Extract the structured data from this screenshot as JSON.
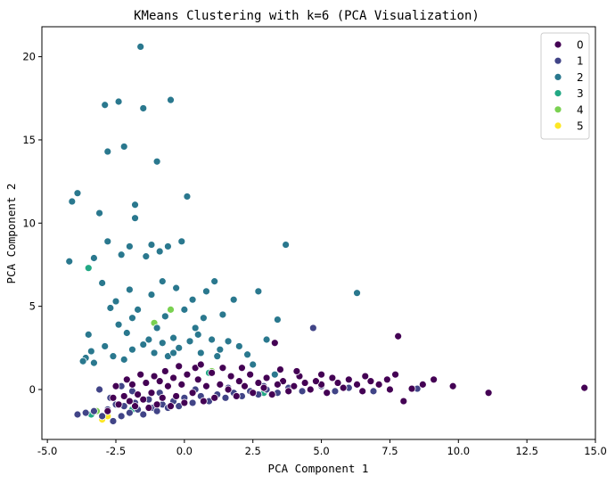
{
  "chart_data": {
    "type": "scatter",
    "title": "KMeans Clustering with k=6 (PCA Visualization)",
    "xlabel": "PCA Component 1",
    "ylabel": "PCA Component 2",
    "xlim": [
      -5.2,
      15.0
    ],
    "ylim": [
      -3.0,
      21.8
    ],
    "x_ticks": [
      "-5.0",
      "-2.5",
      "0.0",
      "2.5",
      "5.0",
      "7.5",
      "10.0",
      "12.5",
      "15.0"
    ],
    "x_tick_values": [
      -5.0,
      -2.5,
      0.0,
      2.5,
      5.0,
      7.5,
      10.0,
      12.5,
      15.0
    ],
    "y_ticks": [
      "0",
      "5",
      "10",
      "15",
      "20"
    ],
    "y_tick_values": [
      0,
      5,
      10,
      15,
      20
    ],
    "grid": false,
    "legend_position": "top-right",
    "series": [
      {
        "name": "0",
        "color": "#440154",
        "points": [
          [
            14.6,
            0.1
          ],
          [
            11.1,
            -0.2
          ],
          [
            9.8,
            0.2
          ],
          [
            9.1,
            0.6
          ],
          [
            8.7,
            0.3
          ],
          [
            8.3,
            0.05
          ],
          [
            8.0,
            -0.7
          ],
          [
            7.8,
            3.2
          ],
          [
            7.7,
            0.9
          ],
          [
            7.4,
            0.6
          ],
          [
            7.1,
            0.3
          ],
          [
            6.8,
            0.5
          ],
          [
            6.5,
            -0.1
          ],
          [
            6.3,
            0.3
          ],
          [
            6.0,
            0.6
          ],
          [
            5.8,
            0.1
          ],
          [
            5.6,
            0.4
          ],
          [
            5.4,
            0.7
          ],
          [
            5.2,
            -0.2
          ],
          [
            5.0,
            0.3
          ],
          [
            4.8,
            0.5
          ],
          [
            4.6,
            0.0
          ],
          [
            4.4,
            0.4
          ],
          [
            4.2,
            0.8
          ],
          [
            4.0,
            0.2
          ],
          [
            3.8,
            -0.1
          ],
          [
            3.6,
            0.5
          ],
          [
            3.4,
            0.3
          ],
          [
            3.3,
            2.8
          ],
          [
            3.2,
            -0.3
          ],
          [
            3.0,
            0.7
          ],
          [
            2.9,
            0.1
          ],
          [
            2.7,
            0.4
          ],
          [
            2.5,
            -0.2
          ],
          [
            2.4,
            0.9
          ],
          [
            2.2,
            0.2
          ],
          [
            2.0,
            0.5
          ],
          [
            1.9,
            -0.4
          ],
          [
            1.7,
            0.8
          ],
          [
            1.6,
            0.0
          ],
          [
            1.4,
            1.3
          ],
          [
            1.3,
            0.3
          ],
          [
            1.1,
            -0.5
          ],
          [
            1.0,
            1.0
          ],
          [
            0.8,
            0.2
          ],
          [
            0.7,
            -0.7
          ],
          [
            0.5,
            0.6
          ],
          [
            0.4,
            1.3
          ],
          [
            0.3,
            -0.2
          ],
          [
            0.1,
            0.9
          ],
          [
            0.0,
            -0.8
          ],
          [
            -0.1,
            0.3
          ],
          [
            -0.2,
            1.4
          ],
          [
            -0.3,
            -0.4
          ],
          [
            -0.4,
            0.7
          ],
          [
            -0.5,
            -1.0
          ],
          [
            -0.6,
            0.2
          ],
          [
            -0.7,
            1.1
          ],
          [
            -0.8,
            -0.5
          ],
          [
            -0.9,
            0.5
          ],
          [
            -1.0,
            -0.9
          ],
          [
            -1.1,
            0.8
          ],
          [
            -1.2,
            -0.2
          ],
          [
            -1.3,
            -1.1
          ],
          [
            -1.4,
            0.4
          ],
          [
            -1.5,
            -0.6
          ],
          [
            -1.6,
            0.9
          ],
          [
            -1.7,
            -0.3
          ],
          [
            -1.8,
            -1.0
          ],
          [
            -1.9,
            0.3
          ],
          [
            -2.0,
            -0.7
          ],
          [
            -2.1,
            0.6
          ],
          [
            -2.2,
            -0.4
          ],
          [
            -2.4,
            -0.9
          ],
          [
            -2.5,
            0.2
          ],
          [
            -2.6,
            -0.5
          ],
          [
            -2.8,
            -1.3
          ],
          [
            3.5,
            1.2
          ],
          [
            4.1,
            1.1
          ],
          [
            5.0,
            0.9
          ],
          [
            6.6,
            0.8
          ],
          [
            7.5,
            0.0
          ],
          [
            2.1,
            1.3
          ],
          [
            0.6,
            1.5
          ]
        ]
      },
      {
        "name": "1",
        "color": "#414487",
        "points": [
          [
            -3.9,
            -1.5
          ],
          [
            -3.6,
            -1.4
          ],
          [
            -3.3,
            -1.3
          ],
          [
            -3.0,
            -1.6
          ],
          [
            -2.8,
            -1.2
          ],
          [
            -2.6,
            -1.9
          ],
          [
            -2.5,
            -0.9
          ],
          [
            -2.3,
            -1.6
          ],
          [
            -2.2,
            -1.0
          ],
          [
            -2.0,
            -1.4
          ],
          [
            -1.8,
            -0.8
          ],
          [
            -1.7,
            -1.2
          ],
          [
            -1.5,
            -1.5
          ],
          [
            -1.3,
            -0.6
          ],
          [
            -1.2,
            -1.1
          ],
          [
            -1.0,
            -1.3
          ],
          [
            -0.8,
            -0.9
          ],
          [
            -0.6,
            -1.1
          ],
          [
            -0.4,
            -0.7
          ],
          [
            -0.2,
            -1.0
          ],
          [
            0.0,
            -0.5
          ],
          [
            0.3,
            -0.8
          ],
          [
            0.6,
            -0.4
          ],
          [
            0.9,
            -0.7
          ],
          [
            1.2,
            -0.3
          ],
          [
            1.5,
            -0.5
          ],
          [
            1.8,
            -0.2
          ],
          [
            2.1,
            -0.4
          ],
          [
            2.4,
            -0.1
          ],
          [
            2.7,
            -0.3
          ],
          [
            3.0,
            0.0
          ],
          [
            3.4,
            -0.2
          ],
          [
            3.8,
            0.1
          ],
          [
            4.3,
            -0.1
          ],
          [
            4.7,
            3.7
          ],
          [
            5.0,
            0.2
          ],
          [
            5.5,
            -0.1
          ],
          [
            6.0,
            0.1
          ],
          [
            6.9,
            -0.1
          ],
          [
            8.5,
            0.05
          ],
          [
            11.1,
            -0.2
          ],
          [
            -2.7,
            -0.5
          ],
          [
            -3.1,
            0.0
          ],
          [
            -2.3,
            0.2
          ],
          [
            -1.9,
            -0.1
          ],
          [
            -0.9,
            -0.2
          ],
          [
            0.4,
            0.0
          ],
          [
            1.6,
            0.1
          ],
          [
            2.9,
            0.2
          ]
        ]
      },
      {
        "name": "2",
        "color": "#2a788e",
        "points": [
          [
            -4.2,
            7.7
          ],
          [
            -4.1,
            11.3
          ],
          [
            -3.9,
            11.8
          ],
          [
            -3.6,
            1.9
          ],
          [
            -3.5,
            3.3
          ],
          [
            -3.4,
            2.3
          ],
          [
            -3.3,
            7.9
          ],
          [
            -3.1,
            10.6
          ],
          [
            -3.0,
            6.4
          ],
          [
            -2.9,
            17.1
          ],
          [
            -2.8,
            14.3
          ],
          [
            -2.8,
            8.9
          ],
          [
            -2.7,
            4.9
          ],
          [
            -2.6,
            2.0
          ],
          [
            -2.5,
            5.3
          ],
          [
            -2.4,
            17.3
          ],
          [
            -2.3,
            8.1
          ],
          [
            -2.2,
            14.6
          ],
          [
            -2.1,
            3.4
          ],
          [
            -2.0,
            6.0
          ],
          [
            -1.9,
            2.4
          ],
          [
            -1.8,
            11.1
          ],
          [
            -1.8,
            10.3
          ],
          [
            -1.7,
            4.8
          ],
          [
            -1.6,
            20.6
          ],
          [
            -1.5,
            16.9
          ],
          [
            -1.4,
            8.0
          ],
          [
            -1.3,
            3.0
          ],
          [
            -1.2,
            5.7
          ],
          [
            -1.1,
            2.2
          ],
          [
            -1.0,
            13.7
          ],
          [
            -0.9,
            8.3
          ],
          [
            -0.8,
            6.5
          ],
          [
            -0.8,
            2.8
          ],
          [
            -0.7,
            4.4
          ],
          [
            -0.6,
            8.6
          ],
          [
            -0.5,
            17.4
          ],
          [
            -0.4,
            3.1
          ],
          [
            -0.3,
            6.1
          ],
          [
            -0.2,
            2.5
          ],
          [
            -0.1,
            8.9
          ],
          [
            0.0,
            4.8
          ],
          [
            0.1,
            11.6
          ],
          [
            0.2,
            2.9
          ],
          [
            0.3,
            5.4
          ],
          [
            0.5,
            3.3
          ],
          [
            0.6,
            2.2
          ],
          [
            0.8,
            5.9
          ],
          [
            1.0,
            3.0
          ],
          [
            1.1,
            6.5
          ],
          [
            1.3,
            2.4
          ],
          [
            1.4,
            4.5
          ],
          [
            1.6,
            2.9
          ],
          [
            1.8,
            5.4
          ],
          [
            2.0,
            2.6
          ],
          [
            2.3,
            2.1
          ],
          [
            2.7,
            5.9
          ],
          [
            3.0,
            3.0
          ],
          [
            3.4,
            4.2
          ],
          [
            3.7,
            8.7
          ],
          [
            6.3,
            5.8
          ],
          [
            -3.3,
            1.6
          ],
          [
            -2.9,
            2.6
          ],
          [
            -2.4,
            3.9
          ],
          [
            -1.9,
            4.3
          ],
          [
            -1.5,
            2.7
          ],
          [
            -1.0,
            3.7
          ],
          [
            -0.6,
            2.0
          ],
          [
            0.4,
            3.7
          ],
          [
            1.2,
            2.0
          ],
          [
            2.5,
            1.5
          ],
          [
            3.3,
            0.9
          ],
          [
            -2.0,
            8.6
          ],
          [
            -1.2,
            8.7
          ],
          [
            -0.4,
            2.2
          ],
          [
            0.7,
            4.3
          ],
          [
            -3.7,
            1.7
          ],
          [
            -2.2,
            1.8
          ]
        ]
      },
      {
        "name": "3",
        "color": "#22a884",
        "points": [
          [
            -3.5,
            7.3
          ],
          [
            0.9,
            1.0
          ],
          [
            2.9,
            -0.2
          ],
          [
            -1.9,
            -1.2
          ],
          [
            -3.4,
            -1.5
          ]
        ]
      },
      {
        "name": "4",
        "color": "#7ad151",
        "points": [
          [
            -1.1,
            4.0
          ],
          [
            -0.5,
            4.8
          ],
          [
            1.0,
            1.1
          ],
          [
            -3.2,
            -1.3
          ]
        ]
      },
      {
        "name": "5",
        "color": "#fde725",
        "points": [
          [
            -3.0,
            -1.8
          ],
          [
            -2.8,
            -1.6
          ]
        ]
      }
    ]
  }
}
